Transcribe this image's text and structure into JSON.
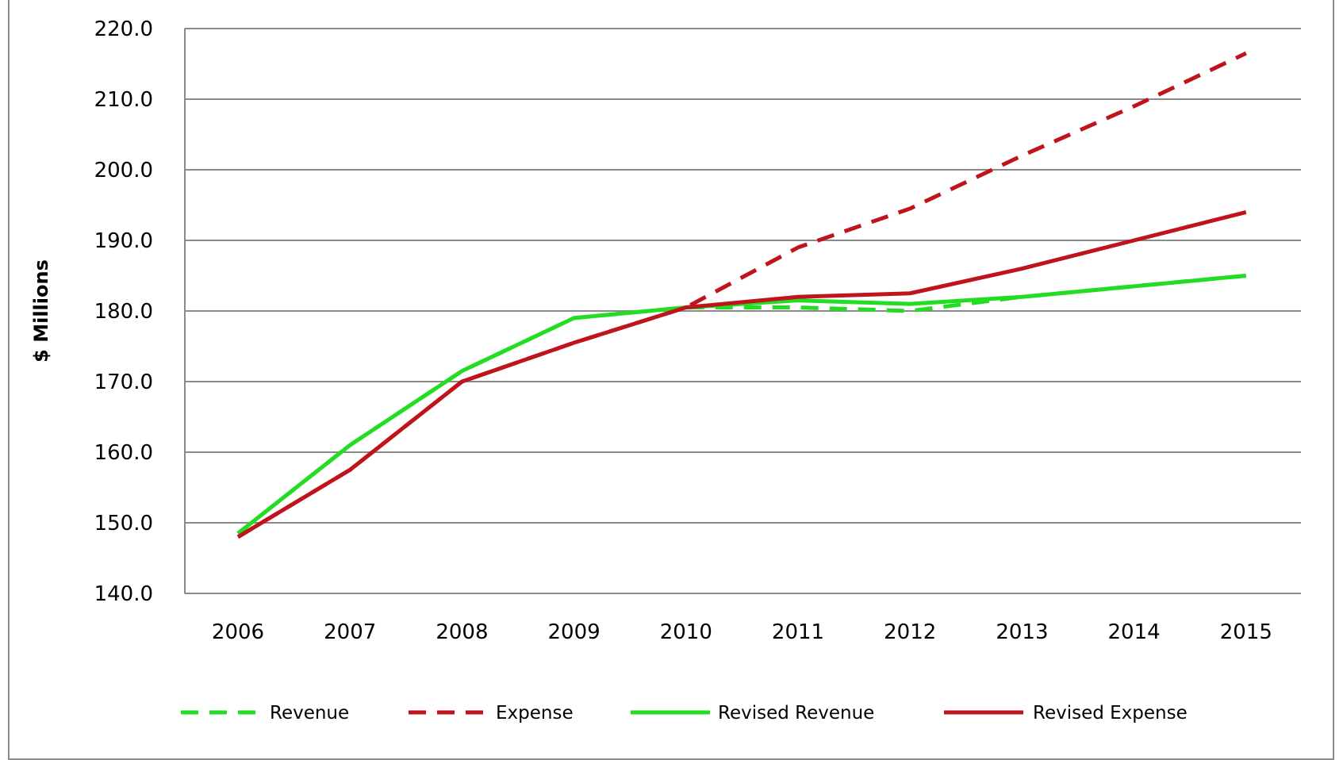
{
  "chart_data": {
    "type": "line",
    "title": "",
    "xlabel": "",
    "ylabel": "$ Millions",
    "categories": [
      "2006",
      "2007",
      "2008",
      "2009",
      "2010",
      "2011",
      "2012",
      "2013",
      "2014",
      "2015"
    ],
    "ylim": [
      140.0,
      220.0
    ],
    "yticks": [
      "140.0",
      "150.0",
      "160.0",
      "170.0",
      "180.0",
      "190.0",
      "200.0",
      "210.0",
      "220.0"
    ],
    "grid": true,
    "legend_position": "bottom",
    "series": [
      {
        "name": "Revenue",
        "color": "#22dd22",
        "style": "dashed",
        "values": [
          148.5,
          161.0,
          171.5,
          179.0,
          180.5,
          180.5,
          180.0,
          182.0,
          183.5,
          185.0
        ]
      },
      {
        "name": "Expense",
        "color": "#c0141c",
        "style": "dashed",
        "values": [
          148.0,
          157.5,
          170.0,
          175.5,
          180.5,
          189.0,
          194.5,
          202.0,
          209.0,
          216.5
        ]
      },
      {
        "name": "Revised Revenue",
        "color": "#22dd22",
        "style": "solid",
        "values": [
          148.5,
          161.0,
          171.5,
          179.0,
          180.5,
          181.5,
          181.0,
          182.0,
          183.5,
          185.0
        ]
      },
      {
        "name": "Revised Expense",
        "color": "#c0141c",
        "style": "solid",
        "values": [
          148.0,
          157.5,
          170.0,
          175.5,
          180.5,
          182.0,
          182.5,
          186.0,
          190.0,
          194.0
        ]
      }
    ]
  }
}
